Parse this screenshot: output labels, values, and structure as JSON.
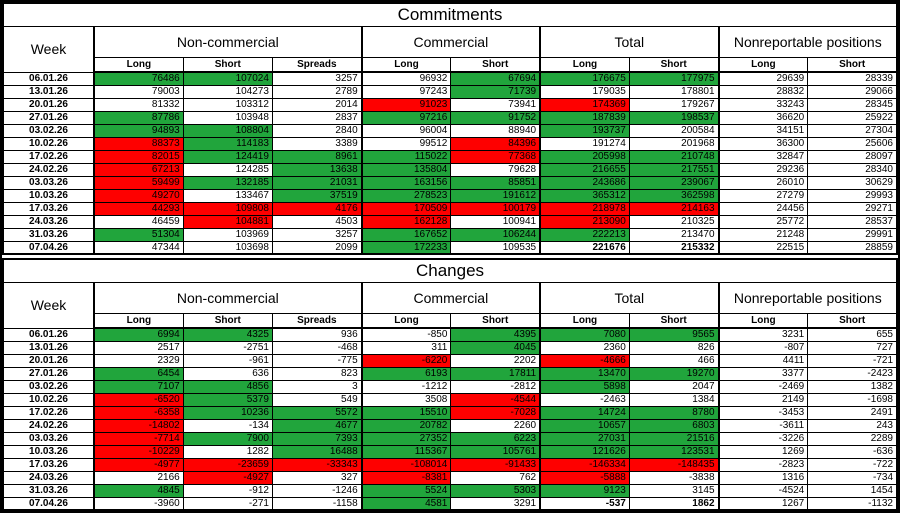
{
  "report": {
    "colors": {
      "g": "#21a53c",
      "r": "#fe0000",
      "w": "#ffffff"
    },
    "column_keys": [
      "nc_long",
      "nc_short",
      "nc_spreads",
      "c_long",
      "c_short",
      "t_long",
      "t_short",
      "nr_long",
      "nr_short"
    ],
    "group_start_value_indexes": [
      0,
      3,
      5,
      7
    ],
    "sections": [
      {
        "title": "Commitments",
        "week_header": "Week",
        "groups": [
          {
            "label": "Non-commercial",
            "columns": [
              "Long",
              "Short",
              "Spreads"
            ]
          },
          {
            "label": "Commercial",
            "columns": [
              "Long",
              "Short"
            ]
          },
          {
            "label": "Total",
            "columns": [
              "Long",
              "Short"
            ]
          },
          {
            "label": "Nonreportable positions",
            "columns": [
              "Long",
              "Short"
            ]
          }
        ],
        "rows": [
          {
            "week": "06.01.26",
            "values": [
              76486,
              107024,
              3257,
              96932,
              67694,
              176675,
              177975,
              29639,
              28339
            ],
            "colors": [
              "g",
              "g",
              "w",
              "w",
              "g",
              "g",
              "g",
              "w",
              "w"
            ],
            "bold": []
          },
          {
            "week": "13.01.26",
            "values": [
              79003,
              104273,
              2789,
              97243,
              71739,
              179035,
              178801,
              28832,
              29066
            ],
            "colors": [
              "w",
              "w",
              "w",
              "w",
              "g",
              "w",
              "w",
              "w",
              "w"
            ],
            "bold": []
          },
          {
            "week": "20.01.26",
            "values": [
              81332,
              103312,
              2014,
              91023,
              73941,
              174369,
              179267,
              33243,
              28345
            ],
            "colors": [
              "w",
              "w",
              "w",
              "r",
              "w",
              "r",
              "w",
              "w",
              "w"
            ],
            "bold": []
          },
          {
            "week": "27.01.26",
            "values": [
              87786,
              103948,
              2837,
              97216,
              91752,
              187839,
              198537,
              36620,
              25922
            ],
            "colors": [
              "g",
              "w",
              "w",
              "g",
              "g",
              "g",
              "g",
              "w",
              "w"
            ],
            "bold": []
          },
          {
            "week": "03.02.26",
            "values": [
              94893,
              108804,
              2840,
              96004,
              88940,
              193737,
              200584,
              34151,
              27304
            ],
            "colors": [
              "g",
              "g",
              "w",
              "w",
              "w",
              "g",
              "w",
              "w",
              "w"
            ],
            "bold": []
          },
          {
            "week": "10.02.26",
            "values": [
              88373,
              114183,
              3389,
              99512,
              84396,
              191274,
              201968,
              36300,
              25606
            ],
            "colors": [
              "r",
              "g",
              "w",
              "w",
              "r",
              "w",
              "w",
              "w",
              "w"
            ],
            "bold": []
          },
          {
            "week": "17.02.26",
            "values": [
              82015,
              124419,
              8961,
              115022,
              77368,
              205998,
              210748,
              32847,
              28097
            ],
            "colors": [
              "r",
              "g",
              "g",
              "g",
              "r",
              "g",
              "g",
              "w",
              "w"
            ],
            "bold": []
          },
          {
            "week": "24.02.26",
            "values": [
              67213,
              124285,
              13638,
              135804,
              79628,
              216655,
              217551,
              29236,
              28340
            ],
            "colors": [
              "r",
              "w",
              "g",
              "g",
              "w",
              "g",
              "g",
              "w",
              "w"
            ],
            "bold": []
          },
          {
            "week": "03.03.26",
            "values": [
              59499,
              132185,
              21031,
              163156,
              85851,
              243686,
              239067,
              26010,
              30629
            ],
            "colors": [
              "r",
              "g",
              "g",
              "g",
              "g",
              "g",
              "g",
              "w",
              "w"
            ],
            "bold": []
          },
          {
            "week": "10.03.26",
            "values": [
              49270,
              133467,
              37519,
              278523,
              191612,
              365312,
              362598,
              27279,
              29993
            ],
            "colors": [
              "r",
              "w",
              "g",
              "g",
              "g",
              "g",
              "g",
              "w",
              "w"
            ],
            "bold": []
          },
          {
            "week": "17.03.26",
            "values": [
              44293,
              109808,
              4176,
              170509,
              100179,
              218978,
              214163,
              24456,
              29271
            ],
            "colors": [
              "r",
              "r",
              "r",
              "r",
              "r",
              "r",
              "r",
              "w",
              "w"
            ],
            "bold": []
          },
          {
            "week": "24.03.26",
            "values": [
              46459,
              104881,
              4503,
              162128,
              100941,
              213090,
              210325,
              25772,
              28537
            ],
            "colors": [
              "w",
              "r",
              "w",
              "r",
              "w",
              "r",
              "w",
              "w",
              "w"
            ],
            "bold": []
          },
          {
            "week": "31.03.26",
            "values": [
              51304,
              103969,
              3257,
              167652,
              106244,
              222213,
              213470,
              21248,
              29991
            ],
            "colors": [
              "g",
              "w",
              "w",
              "g",
              "g",
              "g",
              "w",
              "w",
              "w"
            ],
            "bold": []
          },
          {
            "week": "07.04.26",
            "values": [
              47344,
              103698,
              2099,
              172233,
              109535,
              221676,
              215332,
              22515,
              28859
            ],
            "colors": [
              "w",
              "w",
              "w",
              "g",
              "w",
              "w",
              "w",
              "w",
              "w"
            ],
            "bold": [
              5,
              6
            ]
          }
        ]
      },
      {
        "title": "Changes",
        "week_header": "Week",
        "groups": [
          {
            "label": "Non-commercial",
            "columns": [
              "Long",
              "Short",
              "Spreads"
            ]
          },
          {
            "label": "Commercial",
            "columns": [
              "Long",
              "Short"
            ]
          },
          {
            "label": "Total",
            "columns": [
              "Long",
              "Short"
            ]
          },
          {
            "label": "Nonreportable positions",
            "columns": [
              "Long",
              "Short"
            ]
          }
        ],
        "rows": [
          {
            "week": "06.01.26",
            "values": [
              6994,
              4325,
              936,
              -850,
              4395,
              7080,
              9565,
              3231,
              655
            ],
            "colors": [
              "g",
              "g",
              "w",
              "w",
              "g",
              "g",
              "g",
              "w",
              "w"
            ],
            "bold": []
          },
          {
            "week": "13.01.26",
            "values": [
              2517,
              -2751,
              -468,
              311,
              4045,
              2360,
              826,
              -807,
              727
            ],
            "colors": [
              "w",
              "w",
              "w",
              "w",
              "g",
              "w",
              "w",
              "w",
              "w"
            ],
            "bold": []
          },
          {
            "week": "20.01.26",
            "values": [
              2329,
              -961,
              -775,
              -6220,
              2202,
              -4666,
              466,
              4411,
              -721
            ],
            "colors": [
              "w",
              "w",
              "w",
              "r",
              "w",
              "r",
              "w",
              "w",
              "w"
            ],
            "bold": []
          },
          {
            "week": "27.01.26",
            "values": [
              6454,
              636,
              823,
              6193,
              17811,
              13470,
              19270,
              3377,
              -2423
            ],
            "colors": [
              "g",
              "w",
              "w",
              "g",
              "g",
              "g",
              "g",
              "w",
              "w"
            ],
            "bold": []
          },
          {
            "week": "03.02.26",
            "values": [
              7107,
              4856,
              3,
              -1212,
              -2812,
              5898,
              2047,
              -2469,
              1382
            ],
            "colors": [
              "g",
              "g",
              "w",
              "w",
              "w",
              "g",
              "w",
              "w",
              "w"
            ],
            "bold": []
          },
          {
            "week": "10.02.26",
            "values": [
              -6520,
              5379,
              549,
              3508,
              -4544,
              -2463,
              1384,
              2149,
              -1698
            ],
            "colors": [
              "r",
              "g",
              "w",
              "w",
              "r",
              "w",
              "w",
              "w",
              "w"
            ],
            "bold": []
          },
          {
            "week": "17.02.26",
            "values": [
              -6358,
              10236,
              5572,
              15510,
              -7028,
              14724,
              8780,
              -3453,
              2491
            ],
            "colors": [
              "r",
              "g",
              "g",
              "g",
              "r",
              "g",
              "g",
              "w",
              "w"
            ],
            "bold": []
          },
          {
            "week": "24.02.26",
            "values": [
              -14802,
              -134,
              4677,
              20782,
              2260,
              10657,
              6803,
              -3611,
              243
            ],
            "colors": [
              "r",
              "w",
              "g",
              "g",
              "w",
              "g",
              "g",
              "w",
              "w"
            ],
            "bold": []
          },
          {
            "week": "03.03.26",
            "values": [
              -7714,
              7900,
              7393,
              27352,
              6223,
              27031,
              21516,
              -3226,
              2289
            ],
            "colors": [
              "r",
              "g",
              "g",
              "g",
              "g",
              "g",
              "g",
              "w",
              "w"
            ],
            "bold": []
          },
          {
            "week": "10.03.26",
            "values": [
              -10229,
              1282,
              16488,
              115367,
              105761,
              121626,
              123531,
              1269,
              -636
            ],
            "colors": [
              "r",
              "w",
              "g",
              "g",
              "g",
              "g",
              "g",
              "w",
              "w"
            ],
            "bold": []
          },
          {
            "week": "17.03.26",
            "values": [
              -4977,
              -23659,
              -33343,
              -108014,
              -91433,
              -146334,
              -148435,
              -2823,
              -722
            ],
            "colors": [
              "r",
              "r",
              "r",
              "r",
              "r",
              "r",
              "r",
              "w",
              "w"
            ],
            "bold": []
          },
          {
            "week": "24.03.26",
            "values": [
              2166,
              -4927,
              327,
              -8381,
              762,
              -5888,
              -3838,
              1316,
              -734
            ],
            "colors": [
              "w",
              "r",
              "w",
              "r",
              "w",
              "r",
              "w",
              "w",
              "w"
            ],
            "bold": []
          },
          {
            "week": "31.03.26",
            "values": [
              4845,
              -912,
              -1246,
              5524,
              5303,
              9123,
              3145,
              -4524,
              1454
            ],
            "colors": [
              "g",
              "w",
              "w",
              "g",
              "g",
              "g",
              "w",
              "w",
              "w"
            ],
            "bold": []
          },
          {
            "week": "07.04.26",
            "values": [
              -3960,
              -271,
              -1158,
              4581,
              3291,
              -537,
              1862,
              1267,
              -1132
            ],
            "colors": [
              "w",
              "w",
              "w",
              "g",
              "w",
              "w",
              "w",
              "w",
              "w"
            ],
            "bold": [
              5,
              6
            ]
          }
        ]
      }
    ]
  }
}
